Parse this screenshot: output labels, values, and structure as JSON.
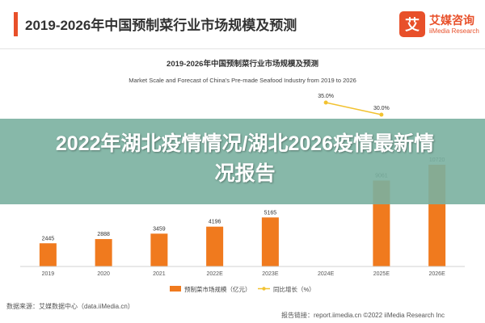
{
  "header": {
    "title": "2019-2026年中国预制菜行业市场规模及预测",
    "logo_char": "艾",
    "brand_cn": "艾媒咨询",
    "brand_en": "iiMedia Research",
    "accent_color": "#e8502a"
  },
  "chart_data": {
    "type": "bar",
    "title": "2019-2026年中国预制菜行业市场规模及预测",
    "subtitle": "Market Scale and Forecast of China's Pre-made Seafood Industry from 2019 to 2026",
    "categories": [
      "2019",
      "2020",
      "2021",
      "2022E",
      "2023E",
      "2024E",
      "2025E",
      "2026E"
    ],
    "series": [
      {
        "name": "预制菜市场规模（亿元）",
        "type": "bar",
        "color": "#f07a1e",
        "values": [
          2445,
          2888,
          3459,
          4196,
          5165,
          null,
          9061,
          10720
        ]
      },
      {
        "name": "同比增长（%）",
        "type": "line",
        "color": "#f2c230",
        "values": [
          null,
          null,
          null,
          null,
          null,
          35.0,
          30.0,
          null
        ]
      }
    ],
    "bar_labels": [
      "2445",
      "2888",
      "3459",
      "4196",
      "5165",
      "",
      "9061",
      "10720"
    ],
    "line_labels": [
      "",
      "",
      "",
      "",
      "",
      "35.0%",
      "30.0%",
      ""
    ],
    "legend_position": "bottom"
  },
  "footer": {
    "source": "数据来源：艾媒数据中心（data.iiMedia.cn）",
    "watermark": "报告链接：report.iimedia.cn   ©2022  iiMedia Research Inc"
  },
  "overlay": {
    "title": "2022年湖北疫情情况/湖北2026疫情最新情况报告",
    "color": "#7ab0a0"
  }
}
